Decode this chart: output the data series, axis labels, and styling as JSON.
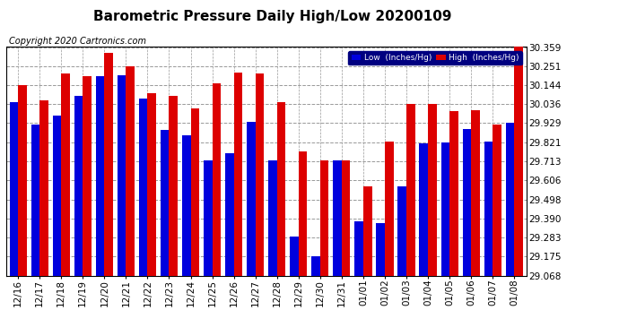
{
  "title": "Barometric Pressure Daily High/Low 20200109",
  "copyright": "Copyright 2020 Cartronics.com",
  "ylim": [
    29.068,
    30.359
  ],
  "yticks": [
    29.068,
    29.175,
    29.283,
    29.39,
    29.498,
    29.606,
    29.713,
    29.821,
    29.929,
    30.036,
    30.144,
    30.251,
    30.359
  ],
  "dates": [
    "12/16",
    "12/17",
    "12/18",
    "12/19",
    "12/20",
    "12/21",
    "12/22",
    "12/23",
    "12/24",
    "12/25",
    "12/26",
    "12/27",
    "12/28",
    "12/29",
    "12/30",
    "12/31",
    "01/01",
    "01/02",
    "01/03",
    "01/04",
    "01/05",
    "01/06",
    "01/07",
    "01/08"
  ],
  "low": [
    30.05,
    29.92,
    29.97,
    30.085,
    30.195,
    30.2,
    30.07,
    29.89,
    29.86,
    29.72,
    29.76,
    29.935,
    29.72,
    29.29,
    29.175,
    29.72,
    29.375,
    29.365,
    29.57,
    29.815,
    29.82,
    29.898,
    29.825,
    29.932
  ],
  "high": [
    30.145,
    30.06,
    30.21,
    30.195,
    30.325,
    30.25,
    30.1,
    30.082,
    30.01,
    30.155,
    30.215,
    30.21,
    30.05,
    29.77,
    29.72,
    29.72,
    29.57,
    29.825,
    30.04,
    30.04,
    29.998,
    30.002,
    29.92,
    30.368
  ],
  "low_color": "#0000dd",
  "high_color": "#dd0000",
  "bg_color": "#ffffff",
  "grid_color": "#999999",
  "title_fontsize": 11,
  "copyright_fontsize": 7,
  "tick_fontsize": 7.5,
  "bar_width": 0.4,
  "legend_low_label": "Low  (Inches/Hg)",
  "legend_high_label": "High  (Inches/Hg)"
}
